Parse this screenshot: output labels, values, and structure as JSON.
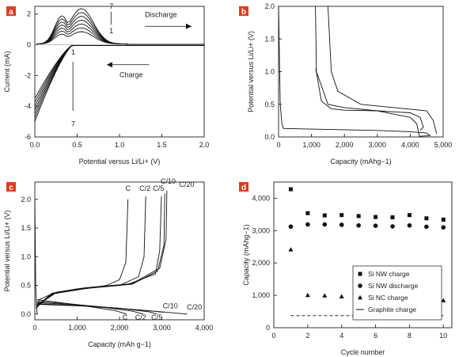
{
  "chart_data": [
    {
      "panel": "a",
      "type": "line",
      "xlabel": "Potential versus Li/Li+ (V)",
      "ylabel": "Current (mA)",
      "xlim": [
        0,
        2.0
      ],
      "ylim": [
        -6,
        2.5
      ],
      "xticks": [
        "0.0",
        "0.5",
        "1.0",
        "1.5",
        "2.0"
      ],
      "yticks": [
        "-6",
        "-4",
        "-2",
        "0",
        "2"
      ],
      "cycle_labels": {
        "top": "7",
        "top_low": "1",
        "bottom_high": "1",
        "bottom": "7"
      },
      "annotations": {
        "discharge": "Discharge",
        "charge": "Charge"
      },
      "cycles": [
        1,
        2,
        3,
        4,
        5,
        6,
        7
      ],
      "anodic_peak": {
        "x": 0.55,
        "y_cycle1": 0.8,
        "y_cycle7": 2.3
      },
      "cathodic_min": {
        "x": 0.0,
        "y_cycle1": -3.5,
        "y_cycle7": -5.0
      }
    },
    {
      "panel": "b",
      "type": "line",
      "xlabel": "Capacity (mAhg−1)",
      "ylabel": "Potential versus Li/Li+ (V)",
      "xlim": [
        0,
        5000
      ],
      "ylim": [
        0,
        2.0
      ],
      "xticks": [
        "0",
        "1,000",
        "2,000",
        "3,000",
        "4,000",
        "5,000"
      ],
      "yticks": [
        "0.0",
        "0.5",
        "1.0",
        "1.5",
        "2.0"
      ],
      "series": [
        {
          "points": [
            [
              0,
              2.0
            ],
            [
              50,
              0.5
            ],
            [
              100,
              0.2
            ],
            [
              150,
              0.13
            ],
            [
              1000,
              0.12
            ],
            [
              2000,
              0.11
            ],
            [
              3000,
              0.1
            ],
            [
              4000,
              0.08
            ],
            [
              4500,
              0.06
            ],
            [
              4600,
              0.02
            ],
            [
              4277,
              0.01
            ],
            [
              4200,
              0.2
            ],
            [
              4000,
              0.3
            ],
            [
              3000,
              0.4
            ],
            [
              2000,
              0.45
            ],
            [
              1500,
              0.5
            ],
            [
              1150,
              1.0
            ],
            [
              1120,
              2.0
            ]
          ]
        },
        {
          "points": [
            [
              1130,
              1.05
            ],
            [
              1300,
              0.55
            ],
            [
              1600,
              0.43
            ],
            [
              2000,
              0.41
            ],
            [
              3000,
              0.4
            ],
            [
              4000,
              0.37
            ],
            [
              4300,
              0.3
            ],
            [
              4400,
              0.15
            ],
            [
              4300,
              0.1
            ]
          ]
        },
        {
          "points": [
            [
              1500,
              2.0
            ],
            [
              1600,
              1.0
            ],
            [
              1800,
              0.7
            ],
            [
              2500,
              0.5
            ],
            [
              3500,
              0.45
            ],
            [
              4500,
              0.4
            ],
            [
              4700,
              0.25
            ],
            [
              4800,
              0.05
            ]
          ]
        }
      ]
    },
    {
      "panel": "c",
      "type": "line",
      "xlabel": "Capacity (mAh g−1)",
      "ylabel": "Potential versus Li/Li+ (V)",
      "xlim": [
        0,
        4000
      ],
      "ylim": [
        -0.1,
        2.3
      ],
      "xticks": [
        "0",
        "1,000",
        "2,000",
        "3,000",
        "4,000"
      ],
      "yticks": [
        "0.0",
        "0.5",
        "1.0",
        "1.5",
        "2.0"
      ],
      "series": [
        {
          "name": "C",
          "charge": [
            [
              50,
              0.1
            ],
            [
              100,
              0.25
            ],
            [
              400,
              0.35
            ],
            [
              1000,
              0.42
            ],
            [
              1700,
              0.5
            ],
            [
              2000,
              0.6
            ],
            [
              2150,
              0.9
            ],
            [
              2200,
              2.0
            ]
          ],
          "discharge": [
            [
              50,
              0.25
            ],
            [
              600,
              0.2
            ],
            [
              1200,
              0.14
            ],
            [
              1900,
              0.06
            ],
            [
              2170,
              0.0
            ]
          ]
        },
        {
          "name": "C/2",
          "charge": [
            [
              50,
              0.12
            ],
            [
              400,
              0.35
            ],
            [
              1000,
              0.43
            ],
            [
              2000,
              0.5
            ],
            [
              2450,
              0.65
            ],
            [
              2580,
              1.0
            ],
            [
              2620,
              2.05
            ]
          ],
          "discharge": [
            [
              50,
              0.22
            ],
            [
              800,
              0.18
            ],
            [
              1600,
              0.12
            ],
            [
              2300,
              0.05
            ],
            [
              2560,
              0.0
            ]
          ]
        },
        {
          "name": "C/5",
          "charge": [
            [
              50,
              0.14
            ],
            [
              400,
              0.36
            ],
            [
              1000,
              0.44
            ],
            [
              2200,
              0.52
            ],
            [
              2850,
              0.7
            ],
            [
              2950,
              1.1
            ],
            [
              2990,
              2.05
            ]
          ],
          "discharge": [
            [
              50,
              0.2
            ],
            [
              1000,
              0.16
            ],
            [
              2000,
              0.1
            ],
            [
              2700,
              0.04
            ],
            [
              2890,
              0.0
            ]
          ]
        },
        {
          "name": "C/10",
          "charge": [
            [
              50,
              0.15
            ],
            [
              500,
              0.37
            ],
            [
              1200,
              0.45
            ],
            [
              2300,
              0.52
            ],
            [
              2900,
              0.75
            ],
            [
              3050,
              1.2
            ],
            [
              3070,
              2.1
            ]
          ],
          "discharge": [
            [
              50,
              0.18
            ],
            [
              1000,
              0.15
            ],
            [
              2000,
              0.1
            ],
            [
              2800,
              0.05
            ],
            [
              3050,
              0.03
            ]
          ]
        },
        {
          "name": "C/20",
          "charge": [
            [
              50,
              0.16
            ],
            [
              500,
              0.38
            ],
            [
              1200,
              0.46
            ],
            [
              2300,
              0.53
            ],
            [
              2950,
              0.8
            ],
            [
              3100,
              1.3
            ],
            [
              3120,
              2.15
            ]
          ],
          "discharge": [
            [
              50,
              0.17
            ],
            [
              1100,
              0.14
            ],
            [
              2100,
              0.09
            ],
            [
              3000,
              0.04
            ],
            [
              3600,
              0.0
            ]
          ]
        }
      ],
      "first_cycle_line": [
        [
          0,
          2.0
        ],
        [
          20,
          0.5
        ],
        [
          40,
          0.1
        ],
        [
          60,
          0.0
        ]
      ]
    },
    {
      "panel": "d",
      "type": "scatter",
      "xlabel": "Cycle number",
      "ylabel": "Capacity (mAhg−1)",
      "xlim": [
        0,
        10.5
      ],
      "ylim": [
        0,
        4500
      ],
      "xticks": [
        "0",
        "2",
        "4",
        "6",
        "8",
        "10"
      ],
      "yticks": [
        "0",
        "1,000",
        "2,000",
        "3,000",
        "4,000"
      ],
      "legend_position": "right",
      "series": [
        {
          "name": "Si NW charge",
          "marker": "square",
          "x": [
            1,
            2,
            3,
            4,
            5,
            6,
            7,
            8,
            9,
            10
          ],
          "values": [
            4277,
            3540,
            3470,
            3480,
            3450,
            3420,
            3410,
            3480,
            3380,
            3340
          ]
        },
        {
          "name": "Si NW discharge",
          "marker": "circle",
          "x": [
            1,
            2,
            3,
            4,
            5,
            6,
            7,
            8,
            9,
            10
          ],
          "values": [
            3124,
            3190,
            3190,
            3180,
            3160,
            3150,
            3130,
            3160,
            3120,
            3100
          ]
        },
        {
          "name": "Si NC charge",
          "marker": "triangle",
          "x": [
            1,
            2,
            3,
            4,
            5,
            6,
            7,
            8,
            9,
            10
          ],
          "values": [
            2410,
            1000,
            990,
            960,
            920,
            880,
            860,
            860,
            850,
            840
          ]
        },
        {
          "name": "Graphite charge",
          "marker": "dash",
          "x": [
            1,
            10
          ],
          "values": [
            372,
            372
          ]
        }
      ]
    }
  ],
  "panel_labels": [
    "a",
    "b",
    "c",
    "d"
  ],
  "colors": {
    "panel_badge": "#e23c1c",
    "line": "#111111"
  }
}
